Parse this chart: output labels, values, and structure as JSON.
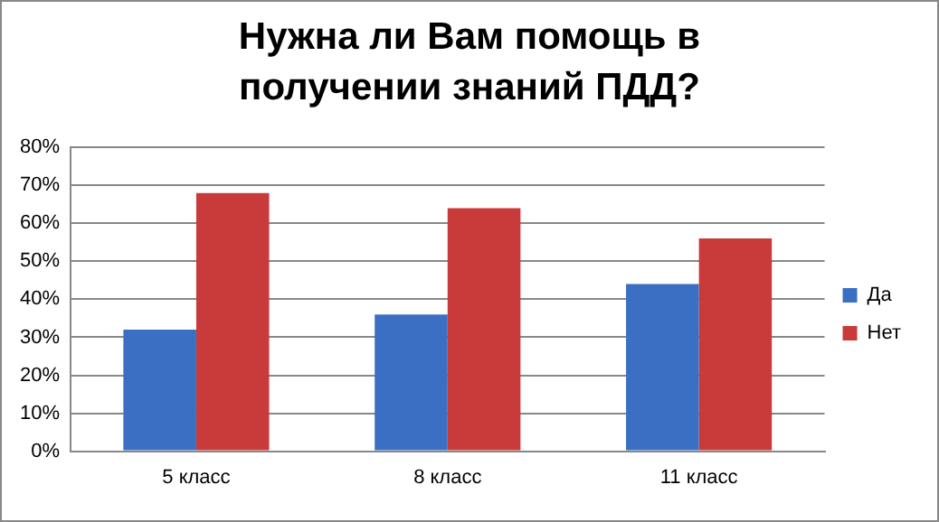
{
  "chart_data": {
    "type": "bar",
    "title": "Нужна ли Вам помощь в получении знаний ПДД?",
    "categories": [
      "5 класс",
      "8 класс",
      "11 класс"
    ],
    "series": [
      {
        "name": "Да",
        "color": "#3a6fc4",
        "values": [
          32,
          36,
          44
        ]
      },
      {
        "name": "Нет",
        "color": "#c93a3a",
        "values": [
          68,
          64,
          56
        ]
      }
    ],
    "ylim": [
      0,
      80
    ],
    "yticks": [
      {
        "value": 0,
        "label": "0%"
      },
      {
        "value": 10,
        "label": "10%"
      },
      {
        "value": 20,
        "label": "20%"
      },
      {
        "value": 30,
        "label": "30%"
      },
      {
        "value": 40,
        "label": "40%"
      },
      {
        "value": 50,
        "label": "50%"
      },
      {
        "value": 60,
        "label": "60%"
      },
      {
        "value": 70,
        "label": "70%"
      },
      {
        "value": 80,
        "label": "80%"
      }
    ],
    "grid": "y",
    "legend": "right"
  }
}
